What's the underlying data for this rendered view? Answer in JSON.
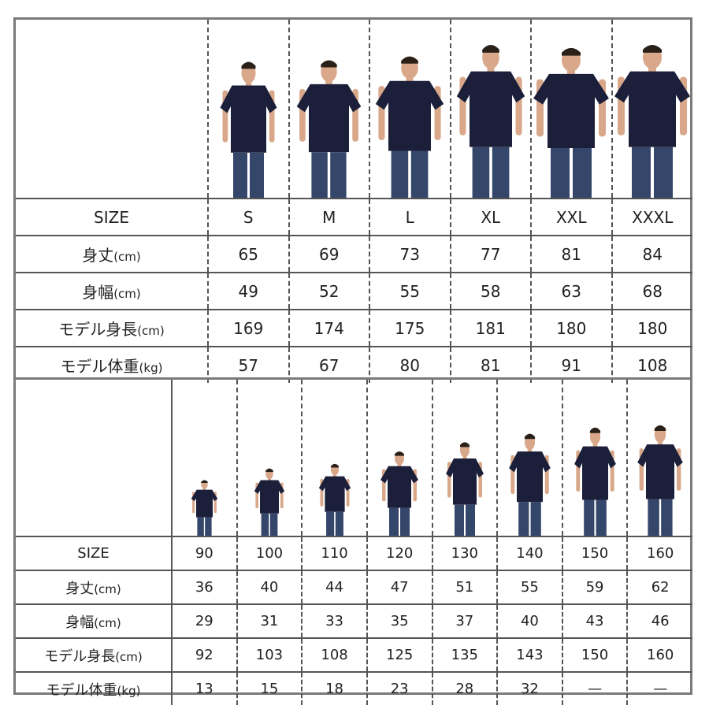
{
  "adult": {
    "row_labels": [
      "SIZE",
      "身丈",
      "身幅",
      "モデル身長",
      "モデル体重"
    ],
    "row_units": [
      "",
      "(cm)",
      "(cm)",
      "(cm)",
      "(kg)"
    ],
    "sizes": [
      "S",
      "M",
      "L",
      "XL",
      "XXL",
      "XXXL"
    ],
    "length": [
      "65",
      "69",
      "73",
      "77",
      "81",
      "84"
    ],
    "width": [
      "49",
      "52",
      "55",
      "58",
      "63",
      "68"
    ],
    "model_height": [
      "169",
      "174",
      "175",
      "181",
      "180",
      "180"
    ],
    "model_weight": [
      "57",
      "67",
      "80",
      "81",
      "91",
      "108"
    ]
  },
  "kids": {
    "row_labels": [
      "SIZE",
      "身丈",
      "身幅",
      "モデル身長",
      "モデル体重"
    ],
    "row_units": [
      "",
      "(cm)",
      "(cm)",
      "(cm)",
      "(kg)"
    ],
    "sizes": [
      "90",
      "100",
      "110",
      "120",
      "130",
      "140",
      "150",
      "160"
    ],
    "length": [
      "36",
      "40",
      "44",
      "47",
      "51",
      "55",
      "59",
      "62"
    ],
    "width": [
      "29",
      "31",
      "33",
      "35",
      "37",
      "40",
      "43",
      "46"
    ],
    "model_height": [
      "92",
      "103",
      "108",
      "125",
      "135",
      "143",
      "150",
      "160"
    ],
    "model_weight": [
      "13",
      "15",
      "18",
      "23",
      "28",
      "32",
      "—",
      "—"
    ]
  },
  "colors": {
    "shirt": "#1c1f3a",
    "border": "#7a7a7a"
  }
}
